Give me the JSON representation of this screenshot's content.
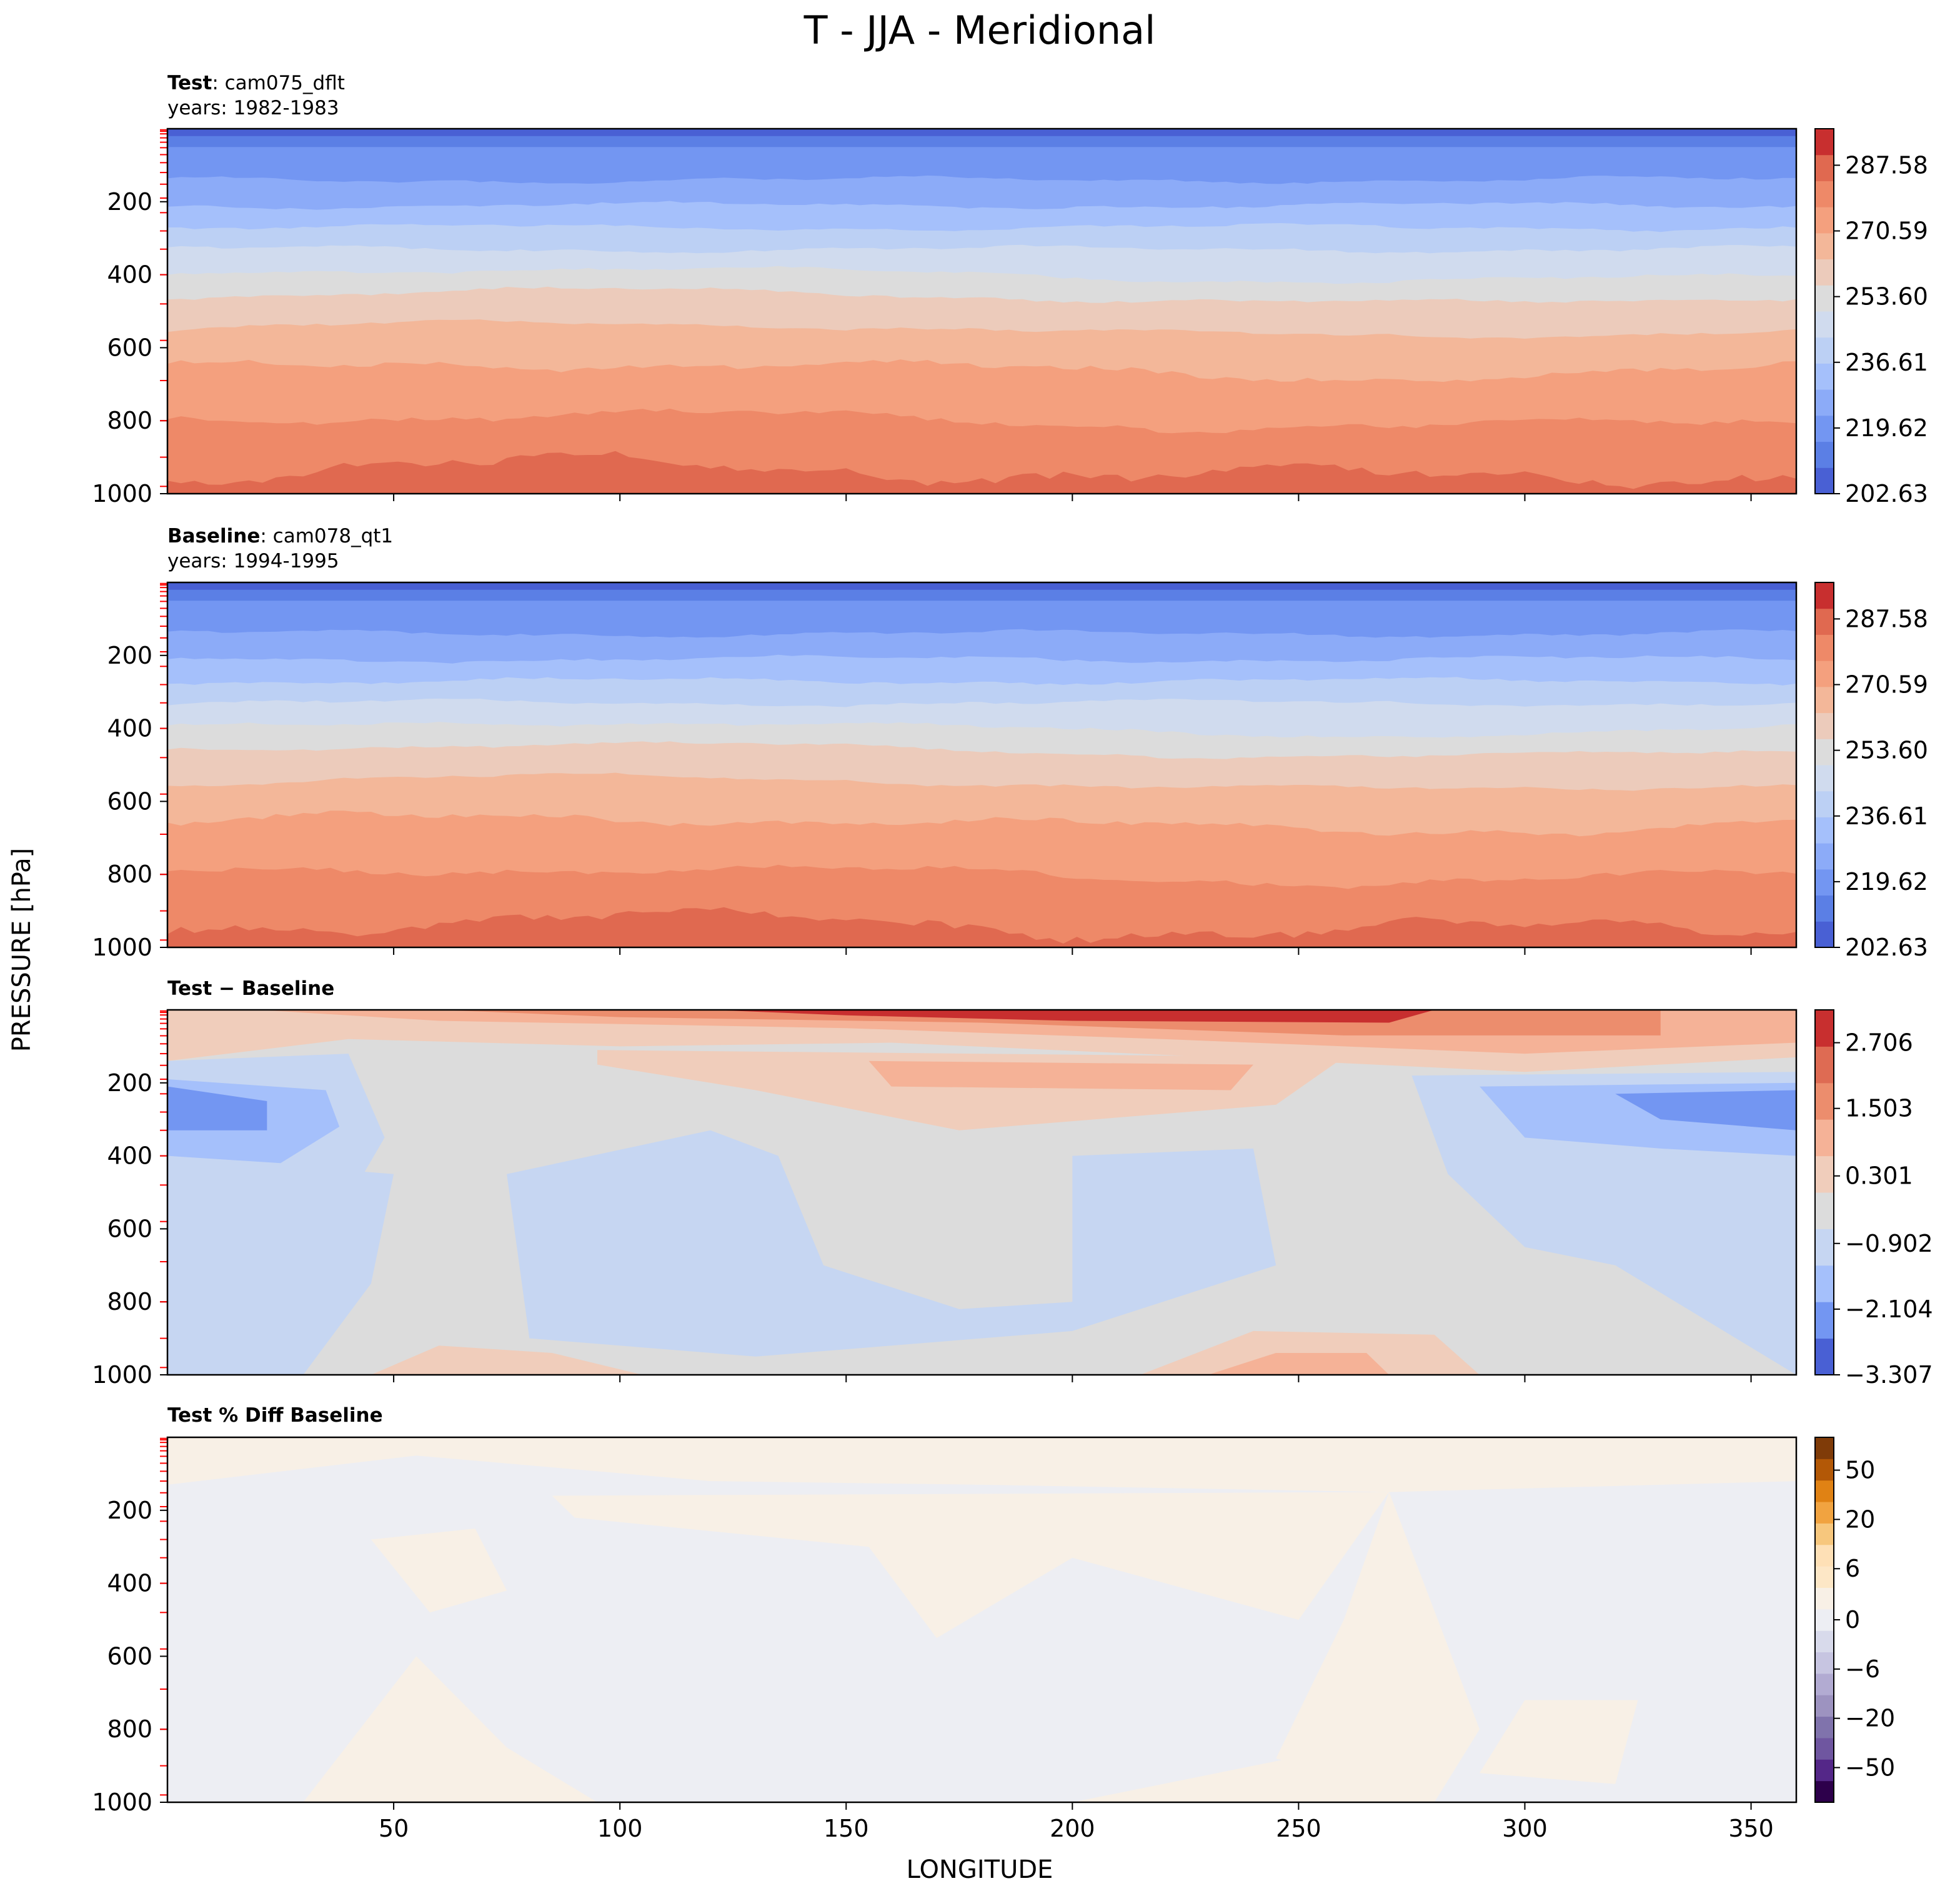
{
  "chart_data": {
    "type": "contour",
    "title": "T - JJA - Meridional",
    "ylabel": "PRESSURE [hPa]",
    "xlabel": "LONGITUDE",
    "xlim": [
      0,
      360
    ],
    "ylim": [
      1000,
      0
    ],
    "x_ticks": [
      "50",
      "100",
      "150",
      "200",
      "250",
      "300",
      "350"
    ],
    "y_ticks": [
      "200",
      "400",
      "600",
      "800",
      "1000"
    ],
    "panels": [
      {
        "id": "test",
        "title_bold": "Test",
        "title_name": ": cam075_dflt",
        "years": "years: 1982-1983",
        "cmap": "coolwarm",
        "levels": [
          202.63,
          209.43,
          216.22,
          223.02,
          229.82,
          236.61,
          243.41,
          250.21,
          257.0,
          263.8,
          270.59,
          277.39,
          284.19,
          290.98,
          297.78
        ],
        "colorbar_ticks": [
          "287.58",
          "270.59",
          "253.60",
          "236.61",
          "219.62",
          "202.63"
        ],
        "band_boundaries_hPa": [
          0,
          20,
          50,
          140,
          210,
          270,
          330,
          400,
          460,
          550,
          660,
          800,
          940,
          1000
        ]
      },
      {
        "id": "baseline",
        "title_bold": "Baseline",
        "title_name": ": cam078_qt1",
        "years": "years: 1994-1995",
        "cmap": "coolwarm",
        "levels": [
          202.63,
          209.43,
          216.22,
          223.02,
          229.82,
          236.61,
          243.41,
          250.21,
          257.0,
          263.8,
          270.59,
          277.39,
          284.19,
          290.98,
          297.78
        ],
        "colorbar_ticks": [
          "287.58",
          "270.59",
          "253.60",
          "236.61",
          "219.62",
          "202.63"
        ],
        "band_boundaries_hPa": [
          0,
          20,
          50,
          140,
          210,
          270,
          330,
          400,
          460,
          550,
          660,
          800,
          940,
          1000
        ]
      },
      {
        "id": "diff",
        "title_bold": "Test − Baseline",
        "cmap": "coolwarm",
        "levels": [
          -3.307,
          -2.706,
          -2.104,
          -1.503,
          -0.902,
          -0.301,
          0.301,
          0.902,
          1.503,
          2.104,
          2.706,
          3.307
        ],
        "colorbar_ticks": [
          "2.706",
          "1.503",
          "0.301",
          "−0.902",
          "−2.104",
          "−3.307"
        ]
      },
      {
        "id": "pct",
        "title_bold": "Test % Diff Baseline",
        "cmap": "PuOr_r",
        "levels": [
          -100,
          -75,
          -50,
          -30,
          -20,
          -10,
          -6,
          -4,
          -2,
          0,
          2,
          4,
          6,
          10,
          20,
          30,
          50,
          75,
          100
        ],
        "colorbar_ticks": [
          "50",
          "20",
          "6",
          "0",
          "−6",
          "−20",
          "−50"
        ]
      }
    ]
  },
  "colors": {
    "coolwarm": [
      "#4960d4",
      "#5b7fe5",
      "#7396f2",
      "#8cabf8",
      "#a5c0fb",
      "#bcd0f4",
      "#d0dbee",
      "#dcdcdc",
      "#eccbbb",
      "#f3b799",
      "#f4a07e",
      "#ee8968",
      "#e06950",
      "#c82f2f"
    ],
    "diff": [
      "#4960d4",
      "#7396f2",
      "#a5c0fb",
      "#c6d6f2",
      "#dcdcdc",
      "#f0cdbb",
      "#f5b297",
      "#ec8d6d",
      "#de6b53",
      "#c82f2f"
    ],
    "pct": [
      "#2d004b",
      "#542788",
      "#6f56a0",
      "#8073ac",
      "#9d93c0",
      "#b2abd2",
      "#c7c5e1",
      "#d8daeb",
      "#edeef3",
      "#f8f0e6",
      "#fde7c6",
      "#fee0b6",
      "#f7c77d",
      "#f1a340",
      "#e08214",
      "#b35806",
      "#7f3b08"
    ],
    "pressure_tick_mark": "#ff0000"
  }
}
